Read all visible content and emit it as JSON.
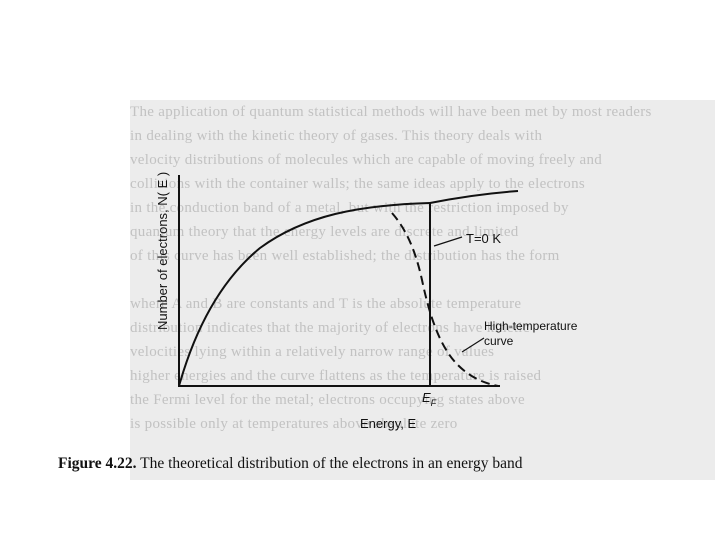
{
  "figure": {
    "y_axis_label": "Number of electrons, N( E )",
    "x_axis_label": "Energy, E",
    "fermi_label": "E",
    "fermi_subscript": "F",
    "t0_label": "T=0 K",
    "high_temp_label_line1": "High-temperature",
    "high_temp_label_line2": "curve"
  },
  "caption": {
    "number": "Figure 4.22.",
    "text": " The theoretical distribution of the electrons in an energy band"
  }
}
